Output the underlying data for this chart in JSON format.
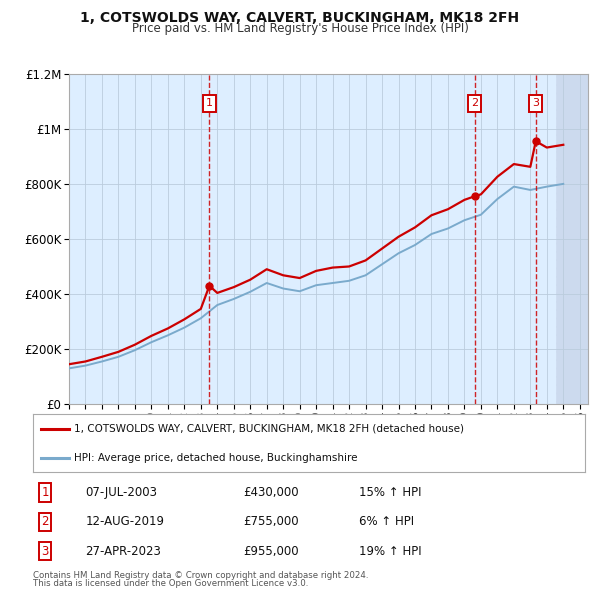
{
  "title1": "1, COTSWOLDS WAY, CALVERT, BUCKINGHAM, MK18 2FH",
  "title2": "Price paid vs. HM Land Registry's House Price Index (HPI)",
  "legend_line1": "1, COTSWOLDS WAY, CALVERT, BUCKINGHAM, MK18 2FH (detached house)",
  "legend_line2": "HPI: Average price, detached house, Buckinghamshire",
  "footnote1": "Contains HM Land Registry data © Crown copyright and database right 2024.",
  "footnote2": "This data is licensed under the Open Government Licence v3.0.",
  "red_color": "#cc0000",
  "blue_color": "#7aaacc",
  "background_color": "#ddeeff",
  "grid_color": "#bbccdd",
  "sale_points": [
    {
      "year": 2003.52,
      "price": 430000,
      "label": "1"
    },
    {
      "year": 2019.62,
      "price": 755000,
      "label": "2"
    },
    {
      "year": 2023.33,
      "price": 955000,
      "label": "3"
    }
  ],
  "table_rows": [
    {
      "num": "1",
      "date": "07-JUL-2003",
      "price": "£430,000",
      "hpi": "15% ↑ HPI"
    },
    {
      "num": "2",
      "date": "12-AUG-2019",
      "price": "£755,000",
      "hpi": "6% ↑ HPI"
    },
    {
      "num": "3",
      "date": "27-APR-2023",
      "price": "£955,000",
      "hpi": "19% ↑ HPI"
    }
  ],
  "xmin": 1995,
  "xmax": 2026.5,
  "ymin": 0,
  "ymax": 1200000,
  "yticks": [
    0,
    200000,
    400000,
    600000,
    800000,
    1000000,
    1200000
  ],
  "ytick_labels": [
    "£0",
    "£200K",
    "£400K",
    "£600K",
    "£800K",
    "£1M",
    "£1.2M"
  ],
  "hpi_years": [
    1995,
    1996,
    1997,
    1998,
    1999,
    2000,
    2001,
    2002,
    2003,
    2004,
    2005,
    2006,
    2007,
    2008,
    2009,
    2010,
    2011,
    2012,
    2013,
    2014,
    2015,
    2016,
    2017,
    2018,
    2019,
    2020,
    2021,
    2022,
    2023,
    2024,
    2025
  ],
  "hpi_values": [
    130000,
    140000,
    155000,
    172000,
    196000,
    225000,
    250000,
    278000,
    312000,
    360000,
    382000,
    408000,
    440000,
    420000,
    410000,
    432000,
    440000,
    448000,
    468000,
    508000,
    548000,
    578000,
    618000,
    638000,
    668000,
    688000,
    745000,
    790000,
    778000,
    790000,
    800000
  ],
  "red_years": [
    1995,
    1996,
    1997,
    1998,
    1999,
    2000,
    2001,
    2002,
    2003,
    2003.52,
    2004,
    2005,
    2006,
    2007,
    2008,
    2009,
    2010,
    2011,
    2012,
    2013,
    2014,
    2015,
    2016,
    2017,
    2018,
    2019,
    2019.62,
    2020,
    2021,
    2022,
    2023,
    2023.33,
    2024,
    2025
  ],
  "red_values": [
    145000,
    155000,
    172000,
    190000,
    216000,
    248000,
    275000,
    308000,
    346000,
    430000,
    404000,
    425000,
    452000,
    490000,
    468000,
    458000,
    484000,
    496000,
    500000,
    522000,
    565000,
    608000,
    642000,
    686000,
    708000,
    742000,
    755000,
    762000,
    826000,
    872000,
    862000,
    955000,
    932000,
    942000
  ]
}
